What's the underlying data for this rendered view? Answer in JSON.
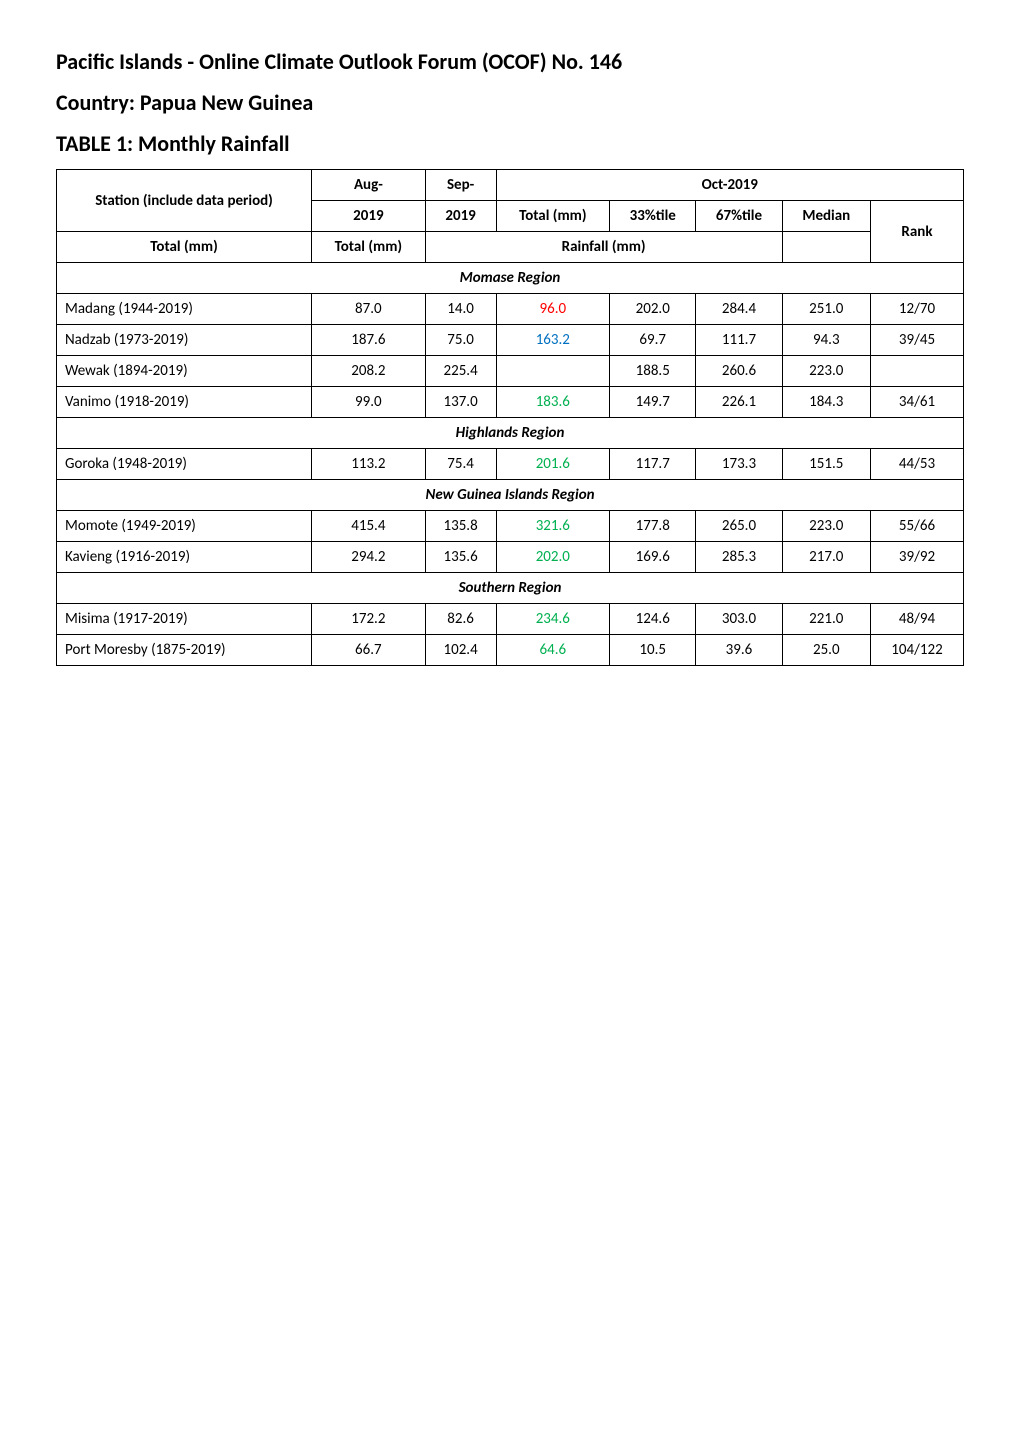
{
  "page_title": "Pacific Islands - Online Climate Outlook Forum (OCOF) No. 146",
  "country_label": "Country: Papua New Guinea",
  "table_caption": "TABLE 1: Monthly Rainfall",
  "header": {
    "station": "Station (include data period)",
    "aug": "Aug-",
    "sep": "Sep-",
    "year1": "2019",
    "year2": "2019",
    "oct": "Oct-2019",
    "total_mm": "Total (mm)",
    "p33": "33%tile",
    "p67": "67%tile",
    "median": "Median",
    "rank": "Rank",
    "total_mm2": "Total (mm)",
    "total_mm3": "Total (mm)",
    "rainfall": "Rainfall (mm)"
  },
  "regions": [
    {
      "name": "Momase Region",
      "rows": [
        {
          "station": "Madang (1944-2019)",
          "aug": "87.0",
          "sep": "14.0",
          "total": "96.0",
          "total_color": "red",
          "p33": "202.0",
          "p67": "284.4",
          "median": "251.0",
          "rank": "12/70"
        },
        {
          "station": "Nadzab (1973-2019)",
          "aug": "187.6",
          "sep": "75.0",
          "total": "163.2",
          "total_color": "blue",
          "p33": "69.7",
          "p67": "111.7",
          "median": "94.3",
          "rank": "39/45"
        },
        {
          "station": "Wewak (1894-2019)",
          "aug": "208.2",
          "sep": "225.4",
          "total": "",
          "total_color": "",
          "p33": "188.5",
          "p67": "260.6",
          "median": "223.0",
          "rank": ""
        },
        {
          "station": "Vanimo (1918-2019)",
          "aug": "99.0",
          "sep": "137.0",
          "total": "183.6",
          "total_color": "green",
          "p33": "149.7",
          "p67": "226.1",
          "median": "184.3",
          "rank": "34/61"
        }
      ]
    },
    {
      "name": "Highlands Region",
      "rows": [
        {
          "station": "Goroka (1948-2019)",
          "aug": "113.2",
          "sep": "75.4",
          "total": "201.6",
          "total_color": "green",
          "p33": "117.7",
          "p67": "173.3",
          "median": "151.5",
          "rank": "44/53"
        }
      ]
    },
    {
      "name": "New Guinea Islands Region",
      "rows": [
        {
          "station": "Momote (1949-2019)",
          "aug": "415.4",
          "sep": "135.8",
          "total": "321.6",
          "total_color": "green",
          "p33": "177.8",
          "p67": "265.0",
          "median": "223.0",
          "rank": "55/66"
        },
        {
          "station": "Kavieng (1916-2019)",
          "aug": "294.2",
          "sep": "135.6",
          "total": "202.0",
          "total_color": "green",
          "p33": "169.6",
          "p67": "285.3",
          "median": "217.0",
          "rank": "39/92"
        }
      ]
    },
    {
      "name": "Southern Region",
      "rows": [
        {
          "station": "Misima (1917-2019)",
          "aug": "172.2",
          "sep": "82.6",
          "total": "234.6",
          "total_color": "green",
          "p33": "124.6",
          "p67": "303.0",
          "median": "221.0",
          "rank": "48/94"
        },
        {
          "station": "Port Moresby (1875-2019)",
          "aug": "66.7",
          "sep": "102.4",
          "total": "64.6",
          "total_color": "green",
          "p33": "10.5",
          "p67": "39.6",
          "median": "25.0",
          "rank": "104/122"
        }
      ]
    }
  ],
  "colors": {
    "red": "#ff0000",
    "blue": "#0070c0",
    "green": "#00b050",
    "black": "#000000"
  }
}
